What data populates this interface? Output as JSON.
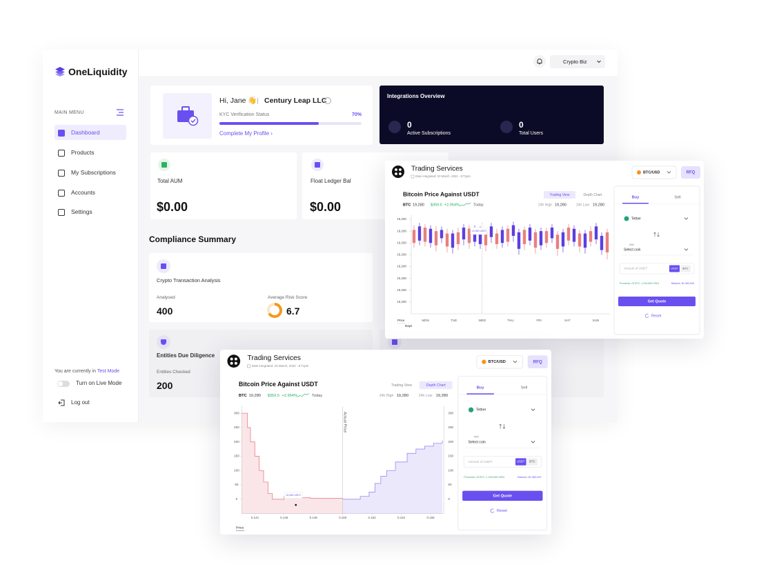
{
  "brand": "OneLiquidity",
  "sidebar": {
    "menu_label": "MAIN MENU",
    "items": [
      "Dashboard",
      "Products",
      "My Subscriptions",
      "Accounts",
      "Settings"
    ],
    "mode_prefix": "You are currently in",
    "mode": "Test Mode",
    "live_toggle": "Turn on Live Mode",
    "logout": "Log out"
  },
  "topbar": {
    "account": "Crypto Biz"
  },
  "profile": {
    "greeting": "Hi, Jane 👋",
    "separator": "|",
    "company": "Century Leap LLC",
    "kyc_label": "KYC Verification Status",
    "kyc_percent": 70,
    "kyc_percent_label": "70%",
    "link": "Complete My Profile"
  },
  "integrations": {
    "title": "Integrations Overview",
    "stats": [
      {
        "value": "0",
        "label": "Active Subscriptions"
      },
      {
        "value": "0",
        "label": "Total Users"
      }
    ]
  },
  "balances": [
    {
      "label": "Total AUM",
      "value": "$0.00"
    },
    {
      "label": "Float Ledger Bal",
      "value": "$0.00"
    }
  ],
  "compliance": {
    "title": "Compliance Summary",
    "crypto": {
      "title": "Crypto Transaction Analysis",
      "analysed_label": "Analysed",
      "analysed": "400",
      "risk_label": "Average Risk Score",
      "risk": "6.7"
    },
    "entities": {
      "title": "Entities Due Diligence",
      "checked_label": "Entities Checked",
      "checked": "200"
    }
  },
  "trading": {
    "title": "Trading Services",
    "date": "Date integrated: 23 March, 2022 - 8:71pm",
    "pair": "BTC/USD",
    "rfq": "RFQ",
    "tabs": [
      "Trading View",
      "Depth Chart"
    ],
    "symbol": "BTC",
    "price": "19,280",
    "change": "$359.5",
    "change_pct": "+2.954%",
    "period": "Today",
    "high_label": "24h High",
    "high": "19,280",
    "low_label": "24h Low",
    "low": "19,280",
    "trade": {
      "tabs": [
        "Buy",
        "Sell"
      ],
      "from": "Tether",
      "with": "With",
      "to": "Select coin",
      "amount_placeholder": "Amount of USDT",
      "units": [
        "USDT",
        "BTC"
      ],
      "proceeds": "Proceeds: 23 BTC, 1,200,849 USDt",
      "balance": "Balance: $1,383,949",
      "quote": "Get Quote",
      "reset": "Reset"
    }
  },
  "chart_data": [
    {
      "type": "candlestick",
      "title": "Bitcoin Price Against USDT",
      "active_tab": 0,
      "x_label": "Days",
      "y_label": "Price",
      "categories": [
        "MON",
        "TUE",
        "WED",
        "THU",
        "FRI",
        "SAT",
        "SUN"
      ],
      "open": [
        7.1,
        6.2,
        7.3,
        6.0,
        7.0,
        6.4,
        6.8,
        5.6,
        6.9,
        6.3,
        7.2,
        6.1,
        5.9,
        7.0,
        6.5,
        6.8,
        6.0,
        7.2,
        6.6,
        5.5,
        7.1,
        6.2,
        6.9,
        5.8,
        7.0,
        6.4,
        6.7,
        5.7,
        7.3,
        6.1,
        6.8,
        5.6,
        7.0,
        6.3,
        5.4,
        6.9
      ],
      "close": [
        6.0,
        7.4,
        6.1,
        7.2,
        5.8,
        7.1,
        5.7,
        6.8,
        5.9,
        7.3,
        6.0,
        7.2,
        7.1,
        5.8,
        7.4,
        5.9,
        7.1,
        6.1,
        7.5,
        6.9,
        5.9,
        7.3,
        5.6,
        7.0,
        6.0,
        7.3,
        5.5,
        6.9,
        6.2,
        7.2,
        5.7,
        6.8,
        6.1,
        7.4,
        6.6,
        5.2
      ],
      "high": [
        7.5,
        7.7,
        7.6,
        7.5,
        7.4,
        7.4,
        7.2,
        7.1,
        7.3,
        7.6,
        7.5,
        7.5,
        7.4,
        7.3,
        7.7,
        7.2,
        7.4,
        7.5,
        7.8,
        7.2,
        7.4,
        7.6,
        7.2,
        7.3,
        7.3,
        7.6,
        7.0,
        7.2,
        7.6,
        7.5,
        7.1,
        7.1,
        7.4,
        7.7,
        6.9,
        7.2
      ],
      "low": [
        5.6,
        5.8,
        5.7,
        5.6,
        5.3,
        6.0,
        5.2,
        5.1,
        5.4,
        5.8,
        5.5,
        5.7,
        5.5,
        5.3,
        6.0,
        5.5,
        5.6,
        5.7,
        6.1,
        5.0,
        5.4,
        5.8,
        5.1,
        5.4,
        5.6,
        6.0,
        4.9,
        5.2,
        5.8,
        5.7,
        5.2,
        5.1,
        5.7,
        5.9,
        5.0,
        4.6
      ],
      "up_color": "#5b3fe0",
      "down_color": "#e8807e",
      "tooltip": "19,280 USDT",
      "ylim": [
        0,
        8
      ],
      "yticks": [
        {
          "value": 8,
          "label": "19,280"
        },
        {
          "value": 7,
          "label": "19,280"
        },
        {
          "value": 6,
          "label": "19,280"
        },
        {
          "value": 5,
          "label": "19,280"
        },
        {
          "value": 4,
          "label": "19,280"
        },
        {
          "value": 3,
          "label": "19,280"
        },
        {
          "value": 2,
          "label": "19,280"
        },
        {
          "value": 1,
          "label": "19,280"
        }
      ]
    },
    {
      "type": "depth",
      "title": "Bitcoin Price Against USDT",
      "active_tab": 1,
      "x_label": "Price",
      "xlim": [
        0.1431,
        0.1569
      ],
      "xticks": [
        0.144,
        0.146,
        0.148,
        {
          "value": 0.15,
          "label": "0.150"
        },
        0.152,
        0.154,
        0.156
      ],
      "ylim": [
        -50,
        310
      ],
      "yticks": [
        300,
        250,
        200,
        150,
        100,
        50,
        0
      ],
      "series": [
        {
          "color": "#e8808a",
          "x": [
            0.1431,
            0.1435,
            0.1437,
            0.144,
            0.1443,
            0.1446,
            0.1449,
            0.1452,
            0.146,
            0.1466,
            0.1478,
            0.15
          ],
          "values": [
            300,
            250,
            200,
            150,
            100,
            60,
            20,
            0,
            10,
            5,
            3,
            0
          ]
        },
        {
          "color": "#9b8cf0",
          "x": [
            0.15,
            0.1512,
            0.1518,
            0.1522,
            0.1526,
            0.153,
            0.1536,
            0.1544,
            0.155,
            0.1556,
            0.1562,
            0.1568
          ],
          "values": [
            0,
            10,
            25,
            55,
            80,
            100,
            130,
            160,
            175,
            185,
            195,
            205
          ]
        }
      ],
      "annotation": {
        "text": "Actual Price",
        "x": 0.15
      },
      "tooltip": {
        "text": "19,280 USDT",
        "x": 0.1468,
        "y": -20
      }
    }
  ]
}
